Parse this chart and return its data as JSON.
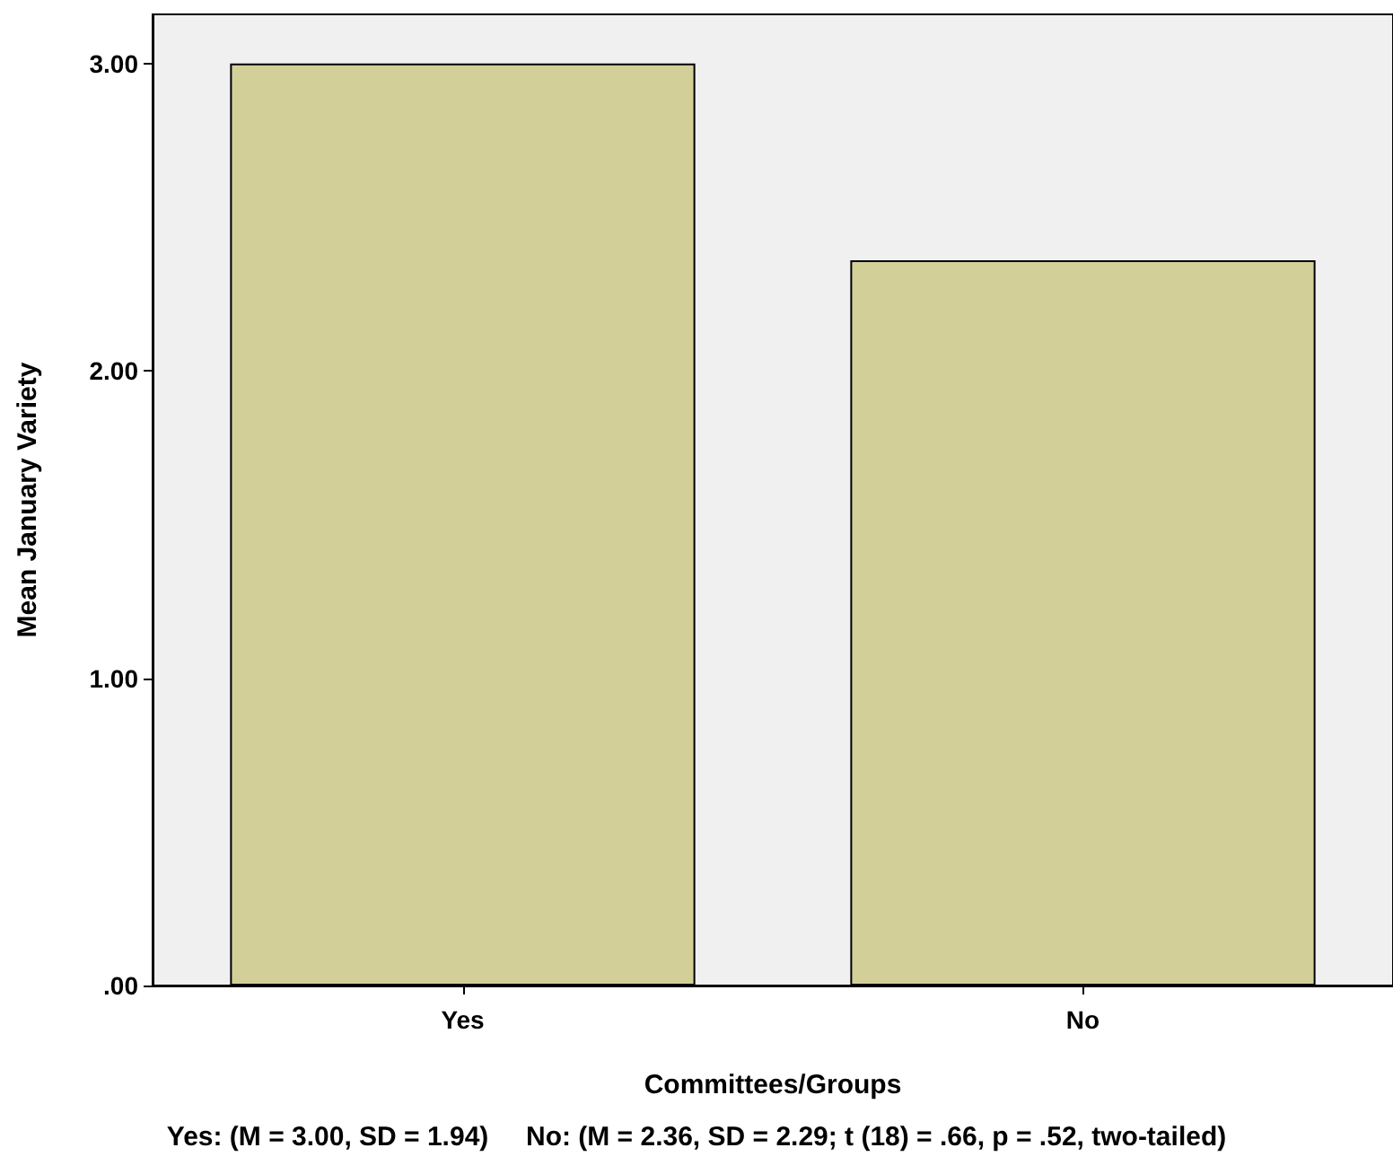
{
  "chart_data": {
    "type": "bar",
    "xlabel": "Committees/Groups",
    "ylabel": "Mean January Variety",
    "categories": [
      "Yes",
      "No"
    ],
    "values": [
      3.0,
      2.36
    ],
    "color": "#d3cf99",
    "ylim": [
      0,
      3.16
    ],
    "yticks": [
      {
        "value": 0,
        "label": ".00"
      },
      {
        "value": 1,
        "label": "1.00"
      },
      {
        "value": 2,
        "label": "2.00"
      },
      {
        "value": 3,
        "label": "3.00"
      }
    ],
    "grid": false,
    "annotations": [
      "Yes: (M = 3.00, SD = 1.94)     No: (M = 2.36, SD = 2.29; t (18) = .66, p = .52, two-tailed)"
    ]
  }
}
